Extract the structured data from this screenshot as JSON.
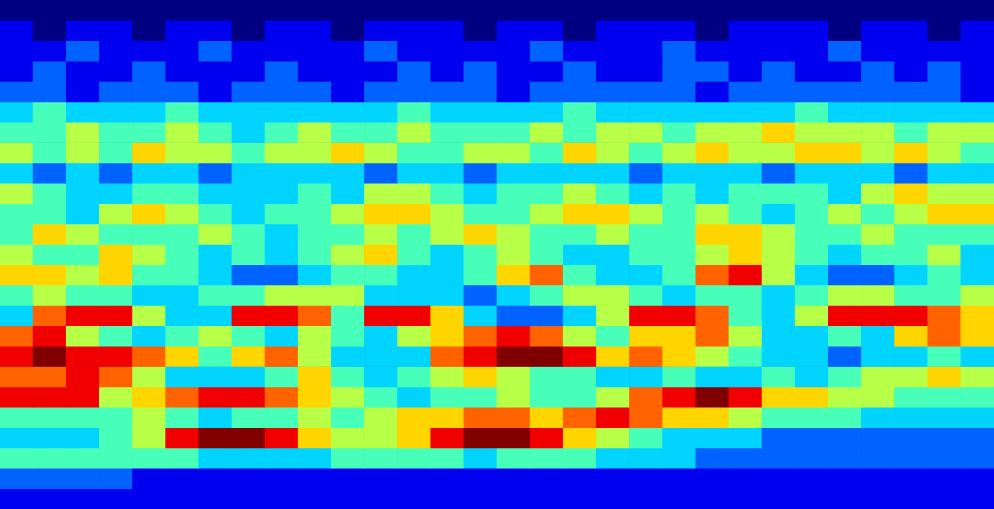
{
  "chart_data": {
    "type": "heatmap",
    "zlim": [
      0,
      9
    ],
    "tick_labels": false,
    "grid": false,
    "cells": [
      [
        0,
        0,
        0,
        0,
        0,
        0,
        0,
        0,
        0,
        0,
        0,
        0,
        0,
        0,
        0,
        0,
        0,
        0,
        0,
        0,
        0,
        0,
        0,
        0,
        0,
        0,
        0,
        0,
        0,
        0
      ],
      [
        1,
        0,
        1,
        1,
        0,
        1,
        1,
        0,
        1,
        1,
        0,
        1,
        1,
        1,
        0,
        1,
        1,
        0,
        1,
        1,
        1,
        0,
        1,
        1,
        1,
        0,
        1,
        1,
        0,
        1
      ],
      [
        1,
        1,
        2,
        1,
        1,
        1,
        2,
        1,
        1,
        1,
        1,
        2,
        1,
        1,
        1,
        1,
        2,
        1,
        1,
        1,
        2,
        1,
        1,
        1,
        1,
        2,
        1,
        1,
        1,
        1
      ],
      [
        1,
        2,
        1,
        1,
        2,
        1,
        1,
        1,
        2,
        1,
        1,
        1,
        2,
        1,
        2,
        1,
        1,
        2,
        1,
        1,
        2,
        2,
        1,
        2,
        1,
        1,
        2,
        1,
        2,
        1
      ],
      [
        2,
        2,
        1,
        2,
        2,
        2,
        1,
        2,
        2,
        2,
        1,
        2,
        2,
        2,
        2,
        1,
        2,
        2,
        2,
        2,
        2,
        1,
        2,
        2,
        2,
        2,
        2,
        2,
        2,
        1
      ],
      [
        3,
        4,
        3,
        3,
        3,
        4,
        3,
        3,
        3,
        3,
        3,
        3,
        4,
        3,
        3,
        3,
        3,
        4,
        3,
        3,
        3,
        3,
        3,
        3,
        4,
        3,
        3,
        3,
        3,
        3
      ],
      [
        4,
        4,
        5,
        4,
        4,
        5,
        4,
        3,
        4,
        5,
        4,
        4,
        5,
        4,
        4,
        4,
        5,
        4,
        5,
        5,
        4,
        5,
        5,
        6,
        5,
        5,
        5,
        4,
        5,
        5
      ],
      [
        5,
        4,
        5,
        4,
        6,
        5,
        5,
        4,
        5,
        5,
        6,
        5,
        4,
        4,
        5,
        5,
        4,
        6,
        5,
        4,
        5,
        6,
        5,
        5,
        6,
        6,
        5,
        6,
        5,
        4
      ],
      [
        3,
        2,
        3,
        2,
        3,
        3,
        2,
        3,
        3,
        3,
        3,
        2,
        3,
        3,
        2,
        3,
        3,
        3,
        3,
        2,
        3,
        3,
        3,
        2,
        3,
        3,
        3,
        2,
        3,
        3
      ],
      [
        5,
        4,
        3,
        3,
        4,
        4,
        3,
        3,
        3,
        4,
        3,
        5,
        5,
        4,
        3,
        4,
        4,
        5,
        4,
        3,
        4,
        3,
        4,
        4,
        4,
        3,
        5,
        6,
        5,
        5
      ],
      [
        4,
        4,
        3,
        5,
        6,
        5,
        4,
        3,
        4,
        4,
        5,
        6,
        6,
        5,
        4,
        4,
        5,
        6,
        6,
        5,
        4,
        5,
        4,
        3,
        4,
        5,
        4,
        5,
        6,
        6
      ],
      [
        4,
        6,
        5,
        4,
        4,
        4,
        5,
        4,
        3,
        4,
        4,
        5,
        4,
        5,
        6,
        5,
        4,
        4,
        5,
        4,
        4,
        6,
        6,
        5,
        4,
        4,
        5,
        4,
        4,
        4
      ],
      [
        5,
        4,
        4,
        6,
        5,
        4,
        3,
        4,
        3,
        4,
        5,
        6,
        4,
        3,
        4,
        5,
        4,
        3,
        3,
        4,
        4,
        5,
        6,
        5,
        4,
        3,
        4,
        4,
        5,
        3
      ],
      [
        6,
        6,
        5,
        6,
        4,
        4,
        3,
        2,
        2,
        3,
        4,
        4,
        3,
        3,
        4,
        6,
        7,
        4,
        3,
        3,
        4,
        7,
        8,
        5,
        3,
        2,
        2,
        3,
        4,
        3
      ],
      [
        4,
        5,
        4,
        4,
        3,
        3,
        4,
        4,
        5,
        5,
        5,
        3,
        3,
        3,
        2,
        3,
        4,
        5,
        5,
        4,
        3,
        4,
        4,
        3,
        4,
        5,
        5,
        4,
        4,
        5
      ],
      [
        3,
        7,
        8,
        8,
        5,
        3,
        3,
        8,
        8,
        7,
        4,
        8,
        8,
        6,
        3,
        2,
        2,
        3,
        5,
        8,
        8,
        7,
        4,
        3,
        5,
        8,
        8,
        8,
        7,
        6
      ],
      [
        7,
        8,
        5,
        4,
        3,
        4,
        5,
        4,
        3,
        5,
        4,
        3,
        5,
        6,
        7,
        8,
        7,
        5,
        4,
        6,
        6,
        7,
        5,
        3,
        3,
        4,
        3,
        6,
        7,
        6
      ],
      [
        8,
        9,
        8,
        8,
        7,
        6,
        4,
        6,
        7,
        5,
        3,
        3,
        3,
        7,
        8,
        9,
        9,
        8,
        6,
        7,
        6,
        5,
        4,
        3,
        3,
        2,
        3,
        3,
        4,
        3
      ],
      [
        7,
        7,
        8,
        7,
        5,
        3,
        3,
        3,
        4,
        6,
        4,
        3,
        4,
        5,
        6,
        5,
        4,
        4,
        3,
        3,
        4,
        3,
        3,
        4,
        3,
        4,
        5,
        5,
        6,
        5
      ],
      [
        8,
        8,
        8,
        5,
        6,
        7,
        8,
        8,
        7,
        6,
        5,
        4,
        3,
        4,
        4,
        5,
        4,
        4,
        5,
        7,
        8,
        9,
        8,
        6,
        6,
        5,
        5,
        4,
        4,
        4
      ],
      [
        4,
        4,
        4,
        4,
        5,
        4,
        3,
        4,
        4,
        5,
        4,
        5,
        6,
        6,
        7,
        7,
        6,
        7,
        8,
        7,
        6,
        6,
        5,
        4,
        4,
        4,
        3,
        3,
        3,
        3
      ],
      [
        3,
        3,
        3,
        4,
        5,
        8,
        9,
        9,
        8,
        6,
        5,
        5,
        6,
        8,
        9,
        9,
        8,
        6,
        5,
        4,
        3,
        3,
        3,
        2,
        2,
        2,
        2,
        2,
        2,
        2
      ],
      [
        4,
        4,
        4,
        4,
        4,
        4,
        3,
        3,
        3,
        3,
        4,
        4,
        4,
        4,
        3,
        4,
        4,
        4,
        3,
        3,
        3,
        2,
        2,
        2,
        2,
        2,
        2,
        2,
        2,
        2
      ],
      [
        2,
        2,
        2,
        2,
        1,
        1,
        1,
        1,
        1,
        1,
        1,
        1,
        1,
        1,
        1,
        1,
        1,
        1,
        1,
        1,
        1,
        1,
        1,
        1,
        1,
        1,
        1,
        1,
        1,
        1
      ],
      [
        1,
        1,
        1,
        1,
        1,
        1,
        1,
        1,
        1,
        1,
        1,
        1,
        1,
        1,
        1,
        1,
        1,
        1,
        1,
        1,
        1,
        1,
        1,
        1,
        1,
        1,
        1,
        1,
        1,
        1
      ]
    ]
  }
}
